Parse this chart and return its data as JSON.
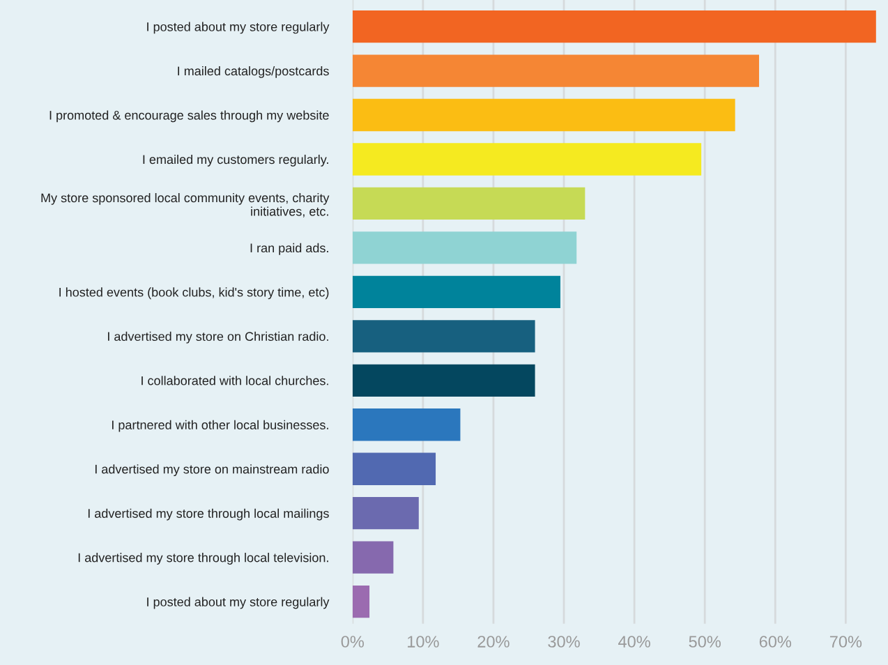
{
  "chart_data": {
    "type": "bar",
    "orientation": "horizontal",
    "categories": [
      "I posted about my store regularly",
      "I mailed catalogs/postcards",
      "I promoted & encourage sales through my website",
      "I emailed my customers regularly.",
      "My store sponsored local community events, charity initiatives, etc.",
      "I ran paid ads.",
      "I hosted events (book clubs, kid's story time, etc)",
      "I advertised my store on Christian radio.",
      "I collaborated with local churches.",
      "I partnered with other local businesses.",
      "I advertised my store on mainstream radio",
      "I advertised my store through local mailings",
      "I advertised my store through local television.",
      "I posted about my store regularly"
    ],
    "values": [
      74.3,
      57.7,
      54.3,
      49.5,
      33.0,
      31.8,
      29.5,
      25.9,
      25.9,
      15.3,
      11.8,
      9.4,
      5.8,
      2.4
    ],
    "colors": [
      "#f26522",
      "#f58634",
      "#fbbd13",
      "#f5ea20",
      "#c6da55",
      "#8fd3d3",
      "#00839b",
      "#17607f",
      "#04475f",
      "#2b77bd",
      "#5169b1",
      "#6b6aaf",
      "#8669ae",
      "#9b6bb0"
    ],
    "xlim": [
      0,
      76
    ],
    "xticks": [
      {
        "value": 0,
        "label": "0%"
      },
      {
        "value": 10,
        "label": "10%"
      },
      {
        "value": 20,
        "label": "20%"
      },
      {
        "value": 30,
        "label": "30%"
      },
      {
        "value": 40,
        "label": "40%"
      },
      {
        "value": 50,
        "label": "50%"
      },
      {
        "value": 60,
        "label": "60%"
      },
      {
        "value": 70,
        "label": "70%"
      }
    ],
    "grid": "x"
  }
}
